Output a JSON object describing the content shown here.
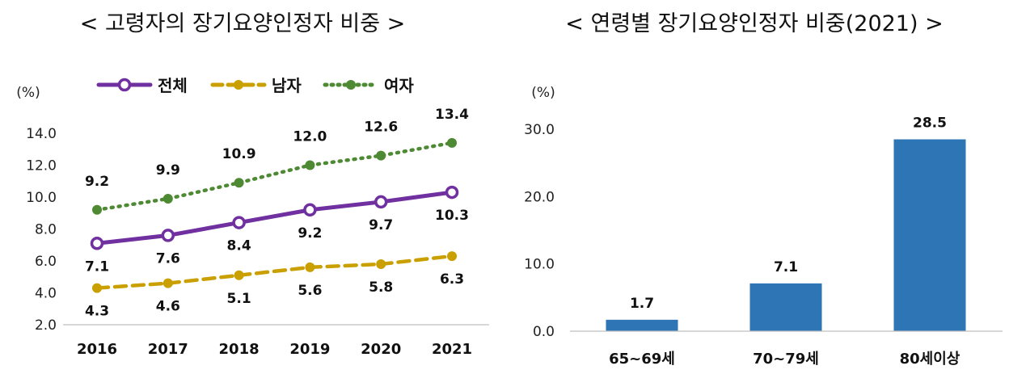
{
  "chart_data": [
    {
      "type": "line",
      "title": "< 고령자의 장기요양인정자 비중 >",
      "ylabel": "(%)",
      "ylim": [
        2.0,
        14.0
      ],
      "yticks": [
        "2.0",
        "4.0",
        "6.0",
        "8.0",
        "10.0",
        "12.0",
        "14.0"
      ],
      "categories": [
        "2016",
        "2017",
        "2018",
        "2019",
        "2020",
        "2021"
      ],
      "series": [
        {
          "name": "전체",
          "color": "#7030A0",
          "style": "solid",
          "values": [
            7.1,
            7.6,
            8.4,
            9.2,
            9.7,
            10.3
          ],
          "labels": [
            "7.1",
            "7.6",
            "8.4",
            "9.2",
            "9.7",
            "10.3"
          ]
        },
        {
          "name": "남자",
          "color": "#C9A000",
          "style": "dashed",
          "values": [
            4.3,
            4.6,
            5.1,
            5.6,
            5.8,
            6.3
          ],
          "labels": [
            "4.3",
            "4.6",
            "5.1",
            "5.6",
            "5.8",
            "6.3"
          ]
        },
        {
          "name": "여자",
          "color": "#4E8A34",
          "style": "dotted",
          "values": [
            9.2,
            9.9,
            10.9,
            12.0,
            12.6,
            13.4
          ],
          "labels": [
            "9.2",
            "9.9",
            "10.9",
            "12.0",
            "12.6",
            "13.4"
          ]
        }
      ],
      "legend_position": "top"
    },
    {
      "type": "bar",
      "title": "< 연령별 장기요양인정자 비중(2021) >",
      "ylabel": "(%)",
      "ylim": [
        0.0,
        30.0
      ],
      "yticks": [
        "0.0",
        "10.0",
        "20.0",
        "30.0"
      ],
      "categories": [
        "65~69세",
        "70~79세",
        "80세이상"
      ],
      "values": [
        1.7,
        7.1,
        28.5
      ],
      "labels": [
        "1.7",
        "7.1",
        "28.5"
      ],
      "color": "#2E75B6"
    }
  ]
}
